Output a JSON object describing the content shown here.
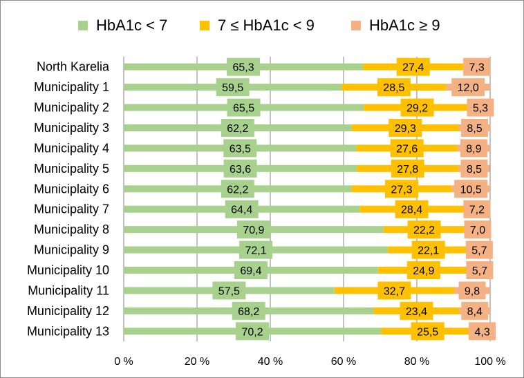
{
  "chart_data": {
    "type": "bar",
    "orientation": "horizontal",
    "stacked": "percent",
    "title": "",
    "xlabel": "",
    "ylabel": "",
    "xlim": [
      0,
      100
    ],
    "x_ticks": [
      "0 %",
      "20 %",
      "40 %",
      "60 %",
      "80 %",
      "100 %"
    ],
    "grid": true,
    "legend_position": "top",
    "categories": [
      "North Karelia",
      "Municipality 1",
      "Municipality 2",
      "Municipality 3",
      "Municipality 4",
      "Municipality 5",
      "Municiplaity 6",
      "Municipality 7",
      "Municipality 8",
      "Municipality 9",
      "Municipality 10",
      "Municipality 11",
      "Municipality 12",
      "Municipality 13"
    ],
    "series": [
      {
        "name": "HbA1c < 7",
        "color": "#a9d18e",
        "values": [
          65.3,
          59.5,
          65.5,
          62.2,
          63.5,
          63.6,
          62.2,
          64.4,
          70.9,
          72.1,
          69.4,
          57.5,
          68.2,
          70.2
        ],
        "labels": [
          "65,3",
          "59,5",
          "65,5",
          "62,2",
          "63,5",
          "63,6",
          "62,2",
          "64,4",
          "70,9",
          "72,1",
          "69,4",
          "57,5",
          "68,2",
          "70,2"
        ]
      },
      {
        "name": "7 ≤ HbA1c < 9",
        "color": "#ffc000",
        "values": [
          27.4,
          28.5,
          29.2,
          29.3,
          27.6,
          27.8,
          27.3,
          28.4,
          22.2,
          22.1,
          24.9,
          32.7,
          23.4,
          25.5
        ],
        "labels": [
          "27,4",
          "28,5",
          "29,2",
          "29,3",
          "27,6",
          "27,8",
          "27,3",
          "28,4",
          "22,2",
          "22,1",
          "24,9",
          "32,7",
          "23,4",
          "25,5"
        ]
      },
      {
        "name": "HbA1c ≥ 9",
        "color": "#f4b183",
        "values": [
          7.3,
          12.0,
          5.3,
          8.5,
          8.9,
          8.5,
          10.5,
          7.2,
          7.0,
          5.7,
          5.7,
          9.8,
          8.4,
          4.3
        ],
        "labels": [
          "7,3",
          "12,0",
          "5,3",
          "8,5",
          "8,9",
          "8,5",
          "10,5",
          "7,2",
          "7,0",
          "5,7",
          "5,7",
          "9,8",
          "8,4",
          "4,3"
        ]
      }
    ]
  }
}
